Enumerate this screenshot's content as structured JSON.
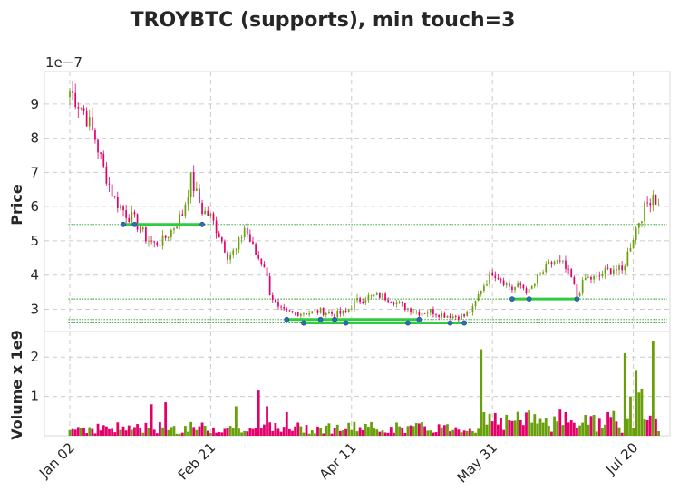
{
  "chart_data": {
    "type": "candlestick",
    "title": "TROYBTC (supports), min touch=3",
    "price_panel": {
      "ylabel": "Price",
      "scale_label": "1e−7",
      "yticks": [
        3,
        4,
        5,
        6,
        7,
        8,
        9
      ],
      "ylim": [
        2.35,
        9.95
      ],
      "grid": true
    },
    "volume_panel": {
      "ylabel": "Volume x 1e9",
      "yticks": [
        1,
        2
      ],
      "ylim": [
        0,
        2.65
      ],
      "grid": true
    },
    "x_dates": [
      "Jan 02",
      "Feb 21",
      "Apr 11",
      "May 31",
      "Jul 20"
    ],
    "x_tick_index": [
      0,
      50,
      100,
      150,
      200
    ],
    "xlim": [
      -9,
      213
    ],
    "colors": {
      "up": "#6a9f0c",
      "down": "#e3006b",
      "support": "#2ecc40",
      "level": "#1a9a1a",
      "touch": "#2e6db4"
    },
    "support_levels": [
      5.48,
      3.3,
      2.7,
      2.6
    ],
    "supports": [
      {
        "level": 5.48,
        "start": 19,
        "end": 47,
        "touches": [
          19,
          23,
          47
        ]
      },
      {
        "level": 2.7,
        "start": 77,
        "end": 124,
        "touches": [
          77,
          89,
          94,
          124
        ]
      },
      {
        "level": 2.6,
        "start": 83,
        "end": 140,
        "touches": [
          83,
          98,
          120,
          135,
          140
        ]
      },
      {
        "level": 3.3,
        "start": 157,
        "end": 180,
        "touches": [
          157,
          163,
          180
        ]
      }
    ],
    "anchors": [
      [
        0,
        9.4
      ],
      [
        5,
        8.8
      ],
      [
        9,
        8.0
      ],
      [
        12,
        7.1
      ],
      [
        16,
        6.2
      ],
      [
        20,
        5.8
      ],
      [
        23,
        5.6
      ],
      [
        27,
        5.1
      ],
      [
        30,
        4.9
      ],
      [
        33,
        5.0
      ],
      [
        36,
        5.3
      ],
      [
        40,
        5.8
      ],
      [
        43,
        6.8
      ],
      [
        47,
        5.9
      ],
      [
        50,
        5.7
      ],
      [
        53,
        5.2
      ],
      [
        56,
        4.6
      ],
      [
        59,
        4.7
      ],
      [
        62,
        5.4
      ],
      [
        66,
        4.6
      ],
      [
        69,
        4.3
      ],
      [
        71,
        3.5
      ],
      [
        74,
        3.0
      ],
      [
        77,
        2.9
      ],
      [
        81,
        2.9
      ],
      [
        85,
        2.9
      ],
      [
        89,
        2.95
      ],
      [
        94,
        2.85
      ],
      [
        98,
        2.9
      ],
      [
        101,
        3.2
      ],
      [
        105,
        3.35
      ],
      [
        110,
        3.4
      ],
      [
        114,
        3.3
      ],
      [
        118,
        3.1
      ],
      [
        121,
        3.0
      ],
      [
        124,
        2.9
      ],
      [
        128,
        2.95
      ],
      [
        132,
        2.85
      ],
      [
        136,
        2.8
      ],
      [
        140,
        2.8
      ],
      [
        143,
        3.0
      ],
      [
        146,
        3.6
      ],
      [
        150,
        4.1
      ],
      [
        153,
        3.9
      ],
      [
        157,
        3.6
      ],
      [
        160,
        3.7
      ],
      [
        163,
        3.5
      ],
      [
        166,
        3.9
      ],
      [
        169,
        4.2
      ],
      [
        172,
        4.4
      ],
      [
        175,
        4.3
      ],
      [
        178,
        3.9
      ],
      [
        180,
        3.4
      ],
      [
        183,
        3.9
      ],
      [
        187,
        3.9
      ],
      [
        190,
        4.1
      ],
      [
        193,
        4.2
      ],
      [
        196,
        4.1
      ],
      [
        199,
        4.9
      ],
      [
        202,
        5.6
      ],
      [
        205,
        6.1
      ],
      [
        207,
        6.4
      ],
      [
        209,
        6.0
      ]
    ],
    "volume_spikes": [
      [
        29,
        0.8
      ],
      [
        34,
        0.85
      ],
      [
        59,
        0.75
      ],
      [
        67,
        1.15
      ],
      [
        70,
        0.75
      ],
      [
        77,
        0.6
      ],
      [
        101,
        0.35
      ],
      [
        146,
        2.2
      ],
      [
        147,
        0.6
      ],
      [
        165,
        0.55
      ],
      [
        176,
        0.6
      ],
      [
        185,
        0.5
      ],
      [
        191,
        0.6
      ],
      [
        197,
        2.1
      ],
      [
        199,
        1.0
      ],
      [
        201,
        1.65
      ],
      [
        202,
        1.1
      ],
      [
        203,
        1.2
      ],
      [
        207,
        2.4
      ]
    ]
  }
}
